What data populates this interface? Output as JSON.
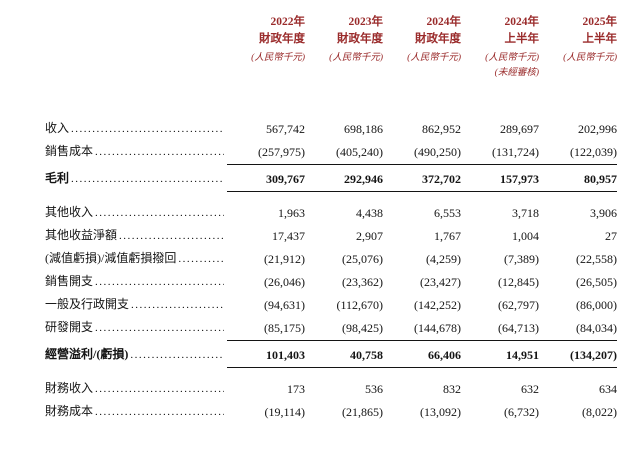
{
  "accent_color": "#9a2b2b",
  "text_color": "#141414",
  "header": {
    "columns": [
      {
        "period": "2022年",
        "scope": "財政年度",
        "unit": "(人民幣千元)",
        "note": ""
      },
      {
        "period": "2023年",
        "scope": "財政年度",
        "unit": "(人民幣千元)",
        "note": ""
      },
      {
        "period": "2024年",
        "scope": "財政年度",
        "unit": "(人民幣千元)",
        "note": ""
      },
      {
        "period": "2024年",
        "scope": "上半年",
        "unit": "(人民幣千元)",
        "note": "(未經審核)"
      },
      {
        "period": "2025年",
        "scope": "上半年",
        "unit": "(人民幣千元)",
        "note": ""
      }
    ]
  },
  "rows": [
    {
      "label": "收入",
      "values": [
        "567,742",
        "698,186",
        "862,952",
        "289,697",
        "202,996"
      ],
      "bold": false,
      "rule_below": false,
      "gap_after": false
    },
    {
      "label": "銷售成本",
      "values": [
        "(257,975)",
        "(405,240)",
        "(490,250)",
        "(131,724)",
        "(122,039)"
      ],
      "bold": false,
      "rule_below": true,
      "gap_after": false
    },
    {
      "label": "毛利",
      "values": [
        "309,767",
        "292,946",
        "372,702",
        "157,973",
        "80,957"
      ],
      "bold": true,
      "rule_below": true,
      "gap_after": true
    },
    {
      "label": "其他收入",
      "values": [
        "1,963",
        "4,438",
        "6,553",
        "3,718",
        "3,906"
      ],
      "bold": false,
      "rule_below": false,
      "gap_after": false
    },
    {
      "label": "其他收益淨額",
      "values": [
        "17,437",
        "2,907",
        "1,767",
        "1,004",
        "27"
      ],
      "bold": false,
      "rule_below": false,
      "gap_after": false
    },
    {
      "label": "(減值虧損)/減值虧損撥回",
      "values": [
        "(21,912)",
        "(25,076)",
        "(4,259)",
        "(7,389)",
        "(22,558)"
      ],
      "bold": false,
      "rule_below": false,
      "gap_after": false
    },
    {
      "label": "銷售開支",
      "values": [
        "(26,046)",
        "(23,362)",
        "(23,427)",
        "(12,845)",
        "(26,505)"
      ],
      "bold": false,
      "rule_below": false,
      "gap_after": false
    },
    {
      "label": "一般及行政開支",
      "values": [
        "(94,631)",
        "(112,670)",
        "(142,252)",
        "(62,797)",
        "(86,000)"
      ],
      "bold": false,
      "rule_below": false,
      "gap_after": false
    },
    {
      "label": "研發開支",
      "values": [
        "(85,175)",
        "(98,425)",
        "(144,678)",
        "(64,713)",
        "(84,034)"
      ],
      "bold": false,
      "rule_below": true,
      "gap_after": false
    },
    {
      "label": "經營溢利/(虧損)",
      "values": [
        "101,403",
        "40,758",
        "66,406",
        "14,951",
        "(134,207)"
      ],
      "bold": true,
      "rule_below": true,
      "gap_after": true
    },
    {
      "label": "財務收入",
      "values": [
        "173",
        "536",
        "832",
        "632",
        "634"
      ],
      "bold": false,
      "rule_below": false,
      "gap_after": false
    },
    {
      "label": "財務成本",
      "values": [
        "(19,114)",
        "(21,865)",
        "(13,092)",
        "(6,732)",
        "(8,022)"
      ],
      "bold": false,
      "rule_below": false,
      "gap_after": false
    }
  ]
}
